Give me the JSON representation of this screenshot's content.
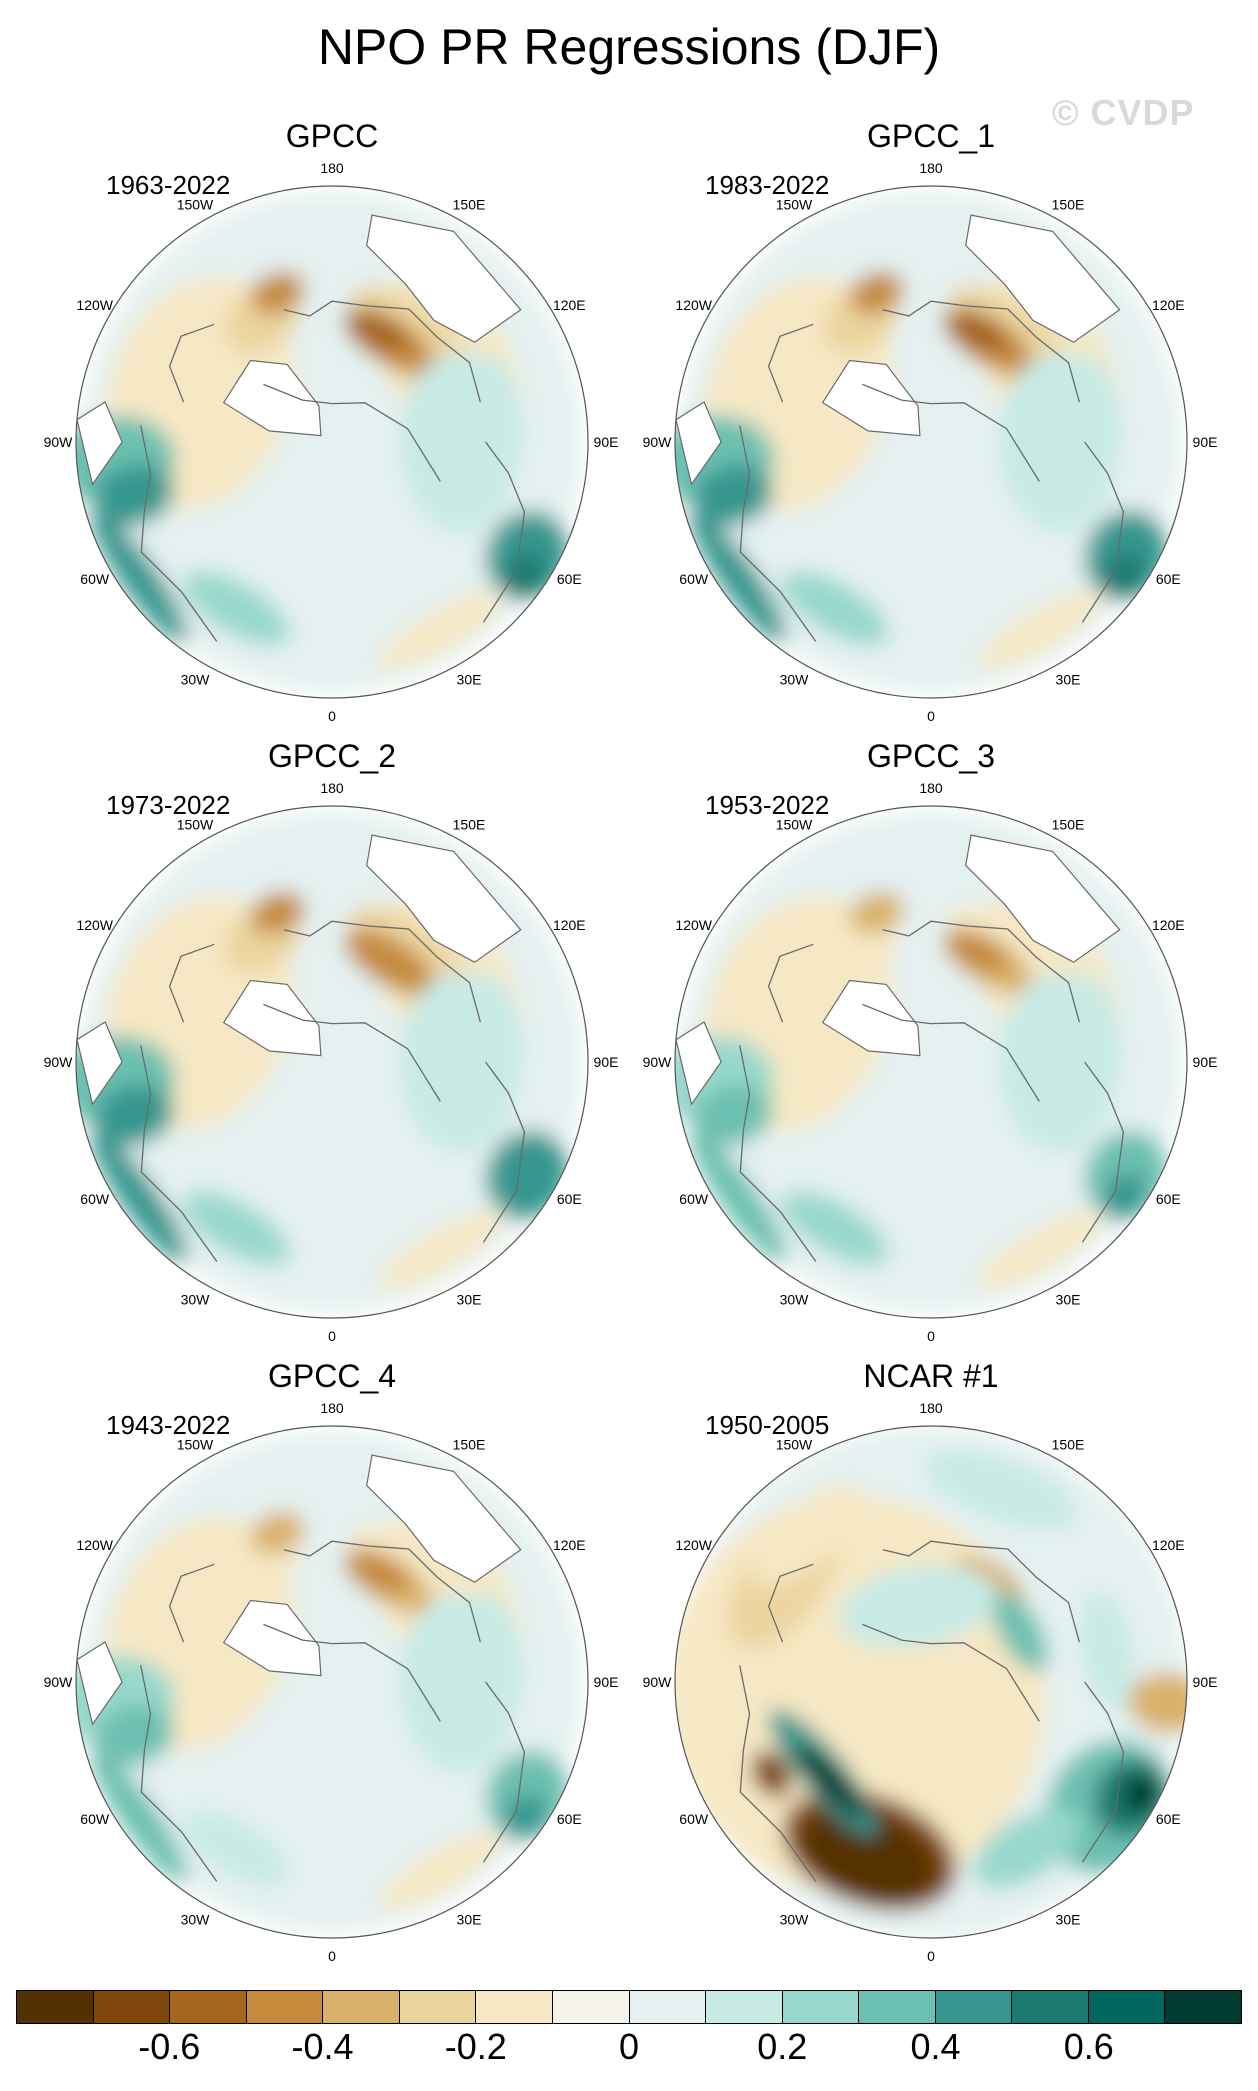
{
  "title": "NPO PR Regressions (DJF)",
  "watermark": "© CVDP",
  "colors": {
    "land_mask": "#ffffff",
    "coastline": "#6a6a6a",
    "rim": "#555555",
    "ocean_fill": "#ffffff"
  },
  "panels": [
    {
      "title": "GPCC",
      "period": "1963-2022",
      "pattern": "obs",
      "intensity": 1.0
    },
    {
      "title": "GPCC_1",
      "period": "1983-2022",
      "pattern": "obs",
      "intensity": 1.05
    },
    {
      "title": "GPCC_2",
      "period": "1973-2022",
      "pattern": "obs",
      "intensity": 0.9
    },
    {
      "title": "GPCC_3",
      "period": "1953-2022",
      "pattern": "obs",
      "intensity": 0.8
    },
    {
      "title": "GPCC_4",
      "period": "1943-2022",
      "pattern": "obs",
      "intensity": 0.75
    },
    {
      "title": "NCAR #1",
      "period": "1950-2005",
      "pattern": "model",
      "intensity": 1.0
    }
  ],
  "longitude_labels": [
    "180",
    "150E",
    "120E",
    "90E",
    "60E",
    "30E",
    "0",
    "30W",
    "60W",
    "90W",
    "120W",
    "150W"
  ],
  "colorbar": {
    "colors": [
      "#543005",
      "#7f470b",
      "#a6661c",
      "#c58a3c",
      "#d9b16a",
      "#ebd49e",
      "#f6e8c4",
      "#f5f2e8",
      "#e4f1f0",
      "#c7eae5",
      "#98d8cc",
      "#6cc0b1",
      "#35978f",
      "#1b7a6f",
      "#01665e",
      "#003c30"
    ],
    "tick_labels": [
      "-0.6",
      "-0.4",
      "-0.2",
      "0",
      "0.2",
      "0.4",
      "0.6"
    ]
  }
}
